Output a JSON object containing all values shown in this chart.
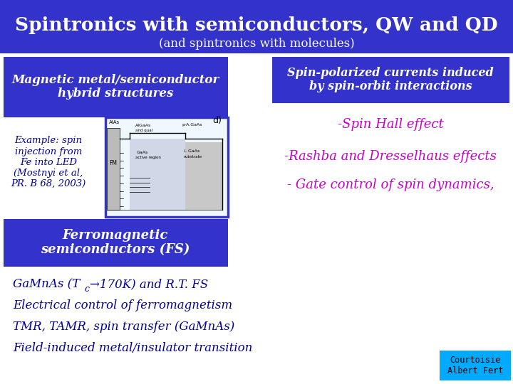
{
  "title": "Spintronics with semiconductors, QW and QD",
  "subtitle": "(and spintronics with molecules)",
  "bg_color": "#ffffff",
  "header_bg": "#3333cc",
  "header_text_color": "#ffffff",
  "box1_text": "Magnetic metal/semiconductor\nhybrid structures",
  "box1_bg": "#3333cc",
  "box2_text": "Spin-polarized currents induced\nby spin-orbit interactions",
  "box2_bg": "#3333cc",
  "box3_text": "Ferromagnetic\nsemiconductors (FS)",
  "box3_bg": "#3333cc",
  "spin_hall": "-Spin Hall effect",
  "rashba": "-Rashba and Dresselhaus effects",
  "gate": "- Gate control of spin dynamics,",
  "spin_color": "#cc00cc",
  "example_text": "Example: spin\ninjection from\nFe into LED\n(Mostnyi et al,\nPR. B 68, 2003)",
  "example_color": "#000099",
  "bullet2": "Electrical control of ferromagnetism",
  "bullet3": "TMR, TAMR, spin transfer (GaMnAs)",
  "bullet4": "Field-induced metal/insulator transition",
  "bullet_color": "#000099",
  "courtesy_text": "Courtoisie\nAlbert Fert",
  "courtesy_bg": "#00aaff",
  "courtesy_text_color": "#000000"
}
